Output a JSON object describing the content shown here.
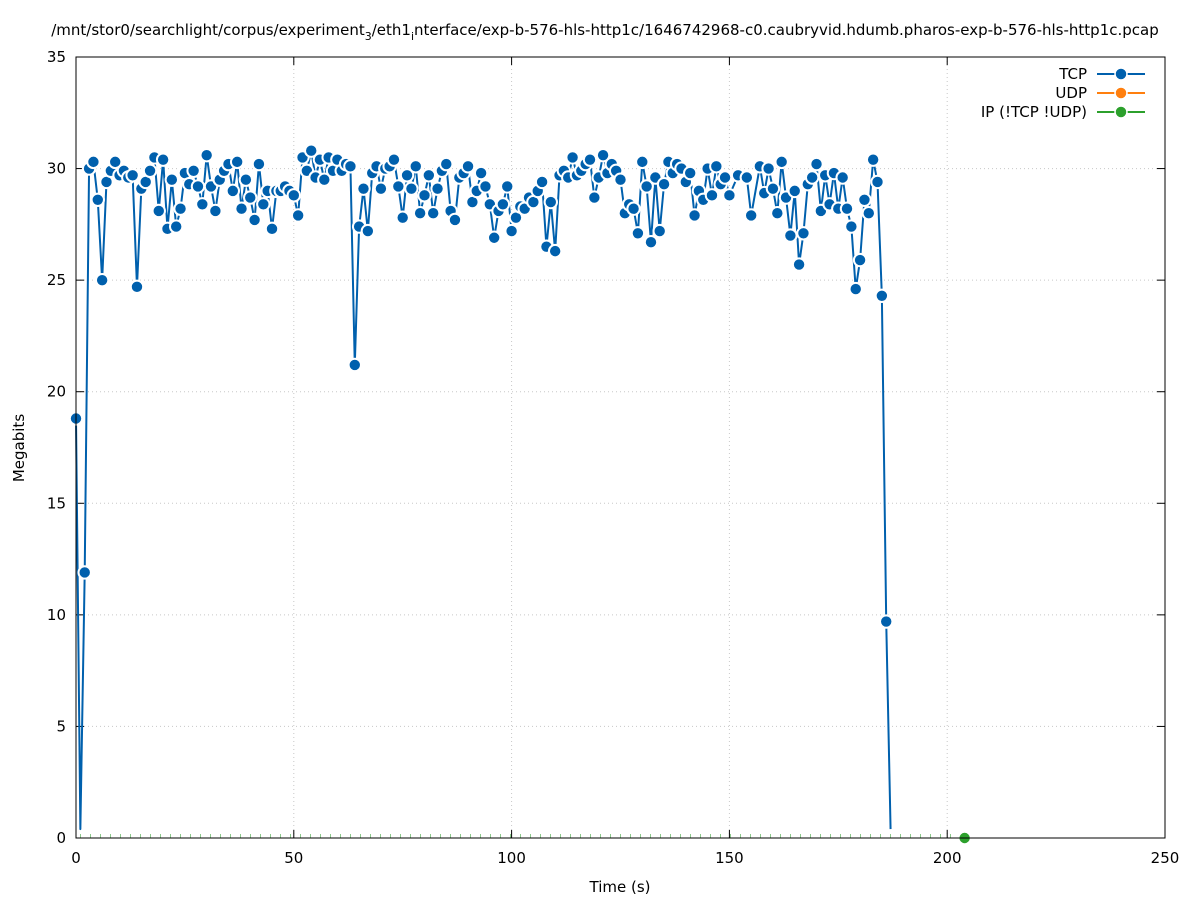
{
  "chart_data": {
    "type": "line",
    "title": "/mnt/stor0/searchlight/corpus/experiment_3/eth1_interface/exp-b-576-hls-http1c/1646742968-c0.caubryvid.hdumb.pharos-exp-b-576-hls-http1c.pcap",
    "title_parts": {
      "p1": "/mnt/stor0/searchlight/corpus/experiment",
      "sub1": "3",
      "p2": "/eth1",
      "sub2": "i",
      "p3": "nterface/exp-b-576-hls-http1c/1646742968-c0.caubryvid.hdumb.pharos-exp-b-576-hls-http1c.pcap"
    },
    "xlabel": "Time (s)",
    "ylabel": "Megabits",
    "xlim": [
      0,
      250
    ],
    "ylim": [
      0,
      35
    ],
    "xticks": [
      0,
      50,
      100,
      150,
      200,
      250
    ],
    "yticks": [
      0,
      5,
      10,
      15,
      20,
      25,
      30,
      35
    ],
    "grid": true,
    "legend_position": "top-right",
    "series": [
      {
        "name": "TCP",
        "color": "#0060ad",
        "points": [
          [
            0,
            18.8
          ],
          [
            1,
            0.4
          ],
          [
            2,
            11.9
          ],
          [
            3,
            30.0
          ],
          [
            4,
            30.3
          ],
          [
            5,
            28.6
          ],
          [
            6,
            25.0
          ],
          [
            7,
            29.4
          ],
          [
            8,
            29.9
          ],
          [
            9,
            30.3
          ],
          [
            10,
            29.7
          ],
          [
            11,
            29.9
          ],
          [
            12,
            29.6
          ],
          [
            13,
            29.7
          ],
          [
            14,
            24.7
          ],
          [
            15,
            29.1
          ],
          [
            16,
            29.4
          ],
          [
            17,
            29.9
          ],
          [
            18,
            30.5
          ],
          [
            19,
            28.1
          ],
          [
            20,
            30.4
          ],
          [
            21,
            27.3
          ],
          [
            22,
            29.5
          ],
          [
            23,
            27.4
          ],
          [
            24,
            28.2
          ],
          [
            25,
            29.8
          ],
          [
            26,
            29.3
          ],
          [
            27,
            29.9
          ],
          [
            28,
            29.2
          ],
          [
            29,
            28.4
          ],
          [
            30,
            30.6
          ],
          [
            31,
            29.2
          ],
          [
            32,
            28.1
          ],
          [
            33,
            29.5
          ],
          [
            34,
            29.9
          ],
          [
            35,
            30.2
          ],
          [
            36,
            29.0
          ],
          [
            37,
            30.3
          ],
          [
            38,
            28.2
          ],
          [
            39,
            29.5
          ],
          [
            40,
            28.7
          ],
          [
            41,
            27.7
          ],
          [
            42,
            30.2
          ],
          [
            43,
            28.4
          ],
          [
            44,
            29.0
          ],
          [
            45,
            27.3
          ],
          [
            46,
            29.0
          ],
          [
            47,
            29.0
          ],
          [
            48,
            29.2
          ],
          [
            49,
            29.0
          ],
          [
            50,
            28.8
          ],
          [
            51,
            27.9
          ],
          [
            52,
            30.5
          ],
          [
            53,
            29.9
          ],
          [
            54,
            30.8
          ],
          [
            55,
            29.6
          ],
          [
            56,
            30.4
          ],
          [
            57,
            29.5
          ],
          [
            58,
            30.5
          ],
          [
            59,
            29.9
          ],
          [
            60,
            30.4
          ],
          [
            61,
            29.9
          ],
          [
            62,
            30.2
          ],
          [
            63,
            30.1
          ],
          [
            64,
            21.2
          ],
          [
            65,
            27.4
          ],
          [
            66,
            29.1
          ],
          [
            67,
            27.2
          ],
          [
            68,
            29.8
          ],
          [
            69,
            30.1
          ],
          [
            70,
            29.1
          ],
          [
            71,
            30.0
          ],
          [
            72,
            30.1
          ],
          [
            73,
            30.4
          ],
          [
            74,
            29.2
          ],
          [
            75,
            27.8
          ],
          [
            76,
            29.7
          ],
          [
            77,
            29.1
          ],
          [
            78,
            30.1
          ],
          [
            79,
            28.0
          ],
          [
            80,
            28.8
          ],
          [
            81,
            29.7
          ],
          [
            82,
            28.0
          ],
          [
            83,
            29.1
          ],
          [
            84,
            29.9
          ],
          [
            85,
            30.2
          ],
          [
            86,
            28.1
          ],
          [
            87,
            27.7
          ],
          [
            88,
            29.6
          ],
          [
            89,
            29.8
          ],
          [
            90,
            30.1
          ],
          [
            91,
            28.5
          ],
          [
            92,
            29.0
          ],
          [
            93,
            29.8
          ],
          [
            94,
            29.2
          ],
          [
            95,
            28.4
          ],
          [
            96,
            26.9
          ],
          [
            97,
            28.1
          ],
          [
            98,
            28.4
          ],
          [
            99,
            29.2
          ],
          [
            100,
            27.2
          ],
          [
            101,
            27.8
          ],
          [
            102,
            28.3
          ],
          [
            103,
            28.2
          ],
          [
            104,
            28.7
          ],
          [
            105,
            28.5
          ],
          [
            106,
            29.0
          ],
          [
            107,
            29.4
          ],
          [
            108,
            26.5
          ],
          [
            109,
            28.5
          ],
          [
            110,
            26.3
          ],
          [
            111,
            29.7
          ],
          [
            112,
            29.9
          ],
          [
            113,
            29.6
          ],
          [
            114,
            30.5
          ],
          [
            115,
            29.7
          ],
          [
            116,
            29.9
          ],
          [
            117,
            30.2
          ],
          [
            118,
            30.4
          ],
          [
            119,
            28.7
          ],
          [
            120,
            29.6
          ],
          [
            121,
            30.6
          ],
          [
            122,
            29.8
          ],
          [
            123,
            30.2
          ],
          [
            124,
            29.9
          ],
          [
            125,
            29.5
          ],
          [
            126,
            28.0
          ],
          [
            127,
            28.4
          ],
          [
            128,
            28.2
          ],
          [
            129,
            27.1
          ],
          [
            130,
            30.3
          ],
          [
            131,
            29.2
          ],
          [
            132,
            26.7
          ],
          [
            133,
            29.6
          ],
          [
            134,
            27.2
          ],
          [
            135,
            29.3
          ],
          [
            136,
            30.3
          ],
          [
            137,
            29.8
          ],
          [
            138,
            30.2
          ],
          [
            139,
            30.0
          ],
          [
            140,
            29.4
          ],
          [
            141,
            29.8
          ],
          [
            142,
            27.9
          ],
          [
            143,
            29.0
          ],
          [
            144,
            28.6
          ],
          [
            145,
            30.0
          ],
          [
            146,
            28.8
          ],
          [
            147,
            30.1
          ],
          [
            148,
            29.3
          ],
          [
            149,
            29.6
          ],
          [
            150,
            28.8
          ],
          [
            152,
            29.7
          ],
          [
            154,
            29.6
          ],
          [
            155,
            27.9
          ],
          [
            157,
            30.1
          ],
          [
            158,
            28.9
          ],
          [
            159,
            30.0
          ],
          [
            160,
            29.1
          ],
          [
            161,
            28.0
          ],
          [
            162,
            30.3
          ],
          [
            163,
            28.7
          ],
          [
            164,
            27.0
          ],
          [
            165,
            29.0
          ],
          [
            166,
            25.7
          ],
          [
            167,
            27.1
          ],
          [
            168,
            29.3
          ],
          [
            169,
            29.6
          ],
          [
            170,
            30.2
          ],
          [
            171,
            28.1
          ],
          [
            172,
            29.7
          ],
          [
            173,
            28.4
          ],
          [
            174,
            29.8
          ],
          [
            175,
            28.2
          ],
          [
            176,
            29.6
          ],
          [
            177,
            28.2
          ],
          [
            178,
            27.4
          ],
          [
            179,
            24.6
          ],
          [
            180,
            25.9
          ],
          [
            181,
            28.6
          ],
          [
            182,
            28.0
          ],
          [
            183,
            30.4
          ],
          [
            184,
            29.4
          ],
          [
            185,
            24.3
          ],
          [
            186,
            9.7
          ],
          [
            187,
            0.4
          ]
        ]
      },
      {
        "name": "UDP",
        "color": "#ff7f0e",
        "points": []
      },
      {
        "name": "IP (!TCP  !UDP)",
        "color": "#2ca02c",
        "points": [
          [
            204,
            0.0
          ]
        ]
      }
    ]
  }
}
